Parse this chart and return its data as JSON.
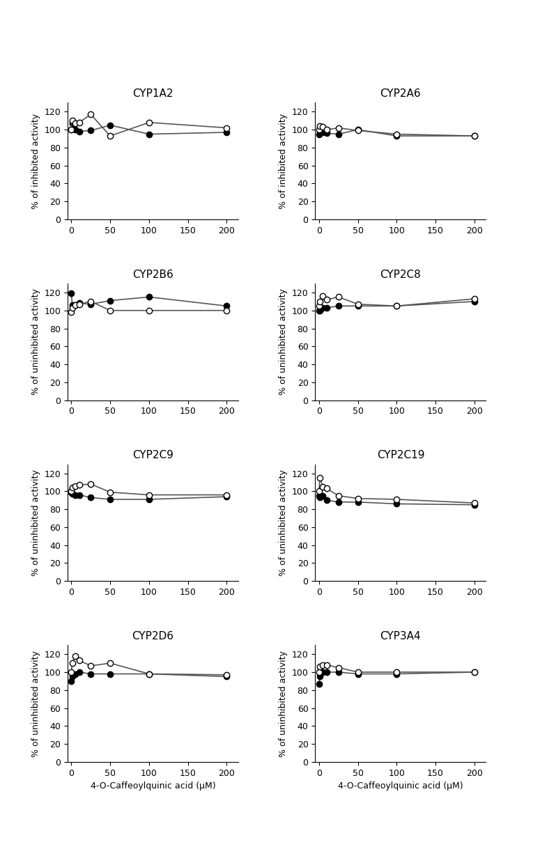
{
  "subplots": [
    {
      "title": "CYP1A2",
      "ylabel": "% of inhibited activity",
      "x": [
        0,
        1,
        5,
        10,
        25,
        50,
        100,
        200
      ],
      "filled_y": [
        100,
        107,
        100,
        98,
        99,
        105,
        95,
        97
      ],
      "open_y": [
        100,
        110,
        107,
        108,
        117,
        93,
        108,
        102
      ]
    },
    {
      "title": "CYP2A6",
      "ylabel": "% of inhibited activity",
      "x": [
        0,
        1,
        5,
        10,
        25,
        50,
        100,
        200
      ],
      "filled_y": [
        95,
        96,
        97,
        96,
        95,
        100,
        93,
        93
      ],
      "open_y": [
        100,
        104,
        103,
        100,
        102,
        99,
        95,
        93
      ]
    },
    {
      "title": "CYP2B6",
      "ylabel": "% of uninhibited activity",
      "x": [
        0,
        1,
        5,
        10,
        25,
        50,
        100,
        200
      ],
      "filled_y": [
        119,
        106,
        106,
        108,
        107,
        111,
        115,
        105
      ],
      "open_y": [
        98,
        103,
        106,
        107,
        110,
        100,
        100,
        100
      ]
    },
    {
      "title": "CYP2C8",
      "ylabel": "% of uninhibited activity",
      "x": [
        0,
        1,
        5,
        10,
        25,
        50,
        100,
        200
      ],
      "filled_y": [
        100,
        100,
        103,
        103,
        105,
        105,
        105,
        110
      ],
      "open_y": [
        105,
        110,
        116,
        112,
        115,
        107,
        105,
        113
      ]
    },
    {
      "title": "CYP2C9",
      "ylabel": "% of uninhibited activity",
      "x": [
        0,
        1,
        5,
        10,
        25,
        50,
        100,
        200
      ],
      "filled_y": [
        99,
        97,
        96,
        96,
        93,
        91,
        91,
        94
      ],
      "open_y": [
        100,
        104,
        106,
        107,
        108,
        99,
        96,
        96
      ]
    },
    {
      "title": "CYP2C19",
      "ylabel": "% of uninhibited activity",
      "x": [
        0,
        1,
        5,
        10,
        25,
        50,
        100,
        200
      ],
      "filled_y": [
        95,
        93,
        95,
        90,
        88,
        88,
        86,
        85
      ],
      "open_y": [
        100,
        115,
        105,
        103,
        95,
        92,
        91,
        87
      ]
    },
    {
      "title": "CYP2D6",
      "ylabel": "% of uninhibited activity",
      "x": [
        0,
        1,
        5,
        10,
        25,
        50,
        100,
        200
      ],
      "filled_y": [
        90,
        95,
        98,
        100,
        98,
        98,
        98,
        95
      ],
      "open_y": [
        100,
        110,
        118,
        113,
        107,
        110,
        98,
        97
      ]
    },
    {
      "title": "CYP3A4",
      "ylabel": "% of uninhibited activity",
      "x": [
        0,
        1,
        5,
        10,
        25,
        50,
        100,
        200
      ],
      "filled_y": [
        87,
        95,
        100,
        100,
        100,
        98,
        98,
        100
      ],
      "open_y": [
        100,
        106,
        108,
        108,
        105,
        100,
        100,
        100
      ]
    }
  ],
  "x_ticks": [
    0,
    50,
    100,
    150,
    200
  ],
  "xlim": [
    -5,
    215
  ],
  "ylim": [
    0,
    130
  ],
  "yticks": [
    0,
    20,
    40,
    60,
    80,
    100,
    120
  ],
  "xlabel": "4-O-Caffeoylquinic acid (μM)",
  "line_color": "#555555",
  "marker_size": 6,
  "linewidth": 1.2,
  "title_fontsize": 11,
  "label_fontsize": 9,
  "tick_fontsize": 9
}
